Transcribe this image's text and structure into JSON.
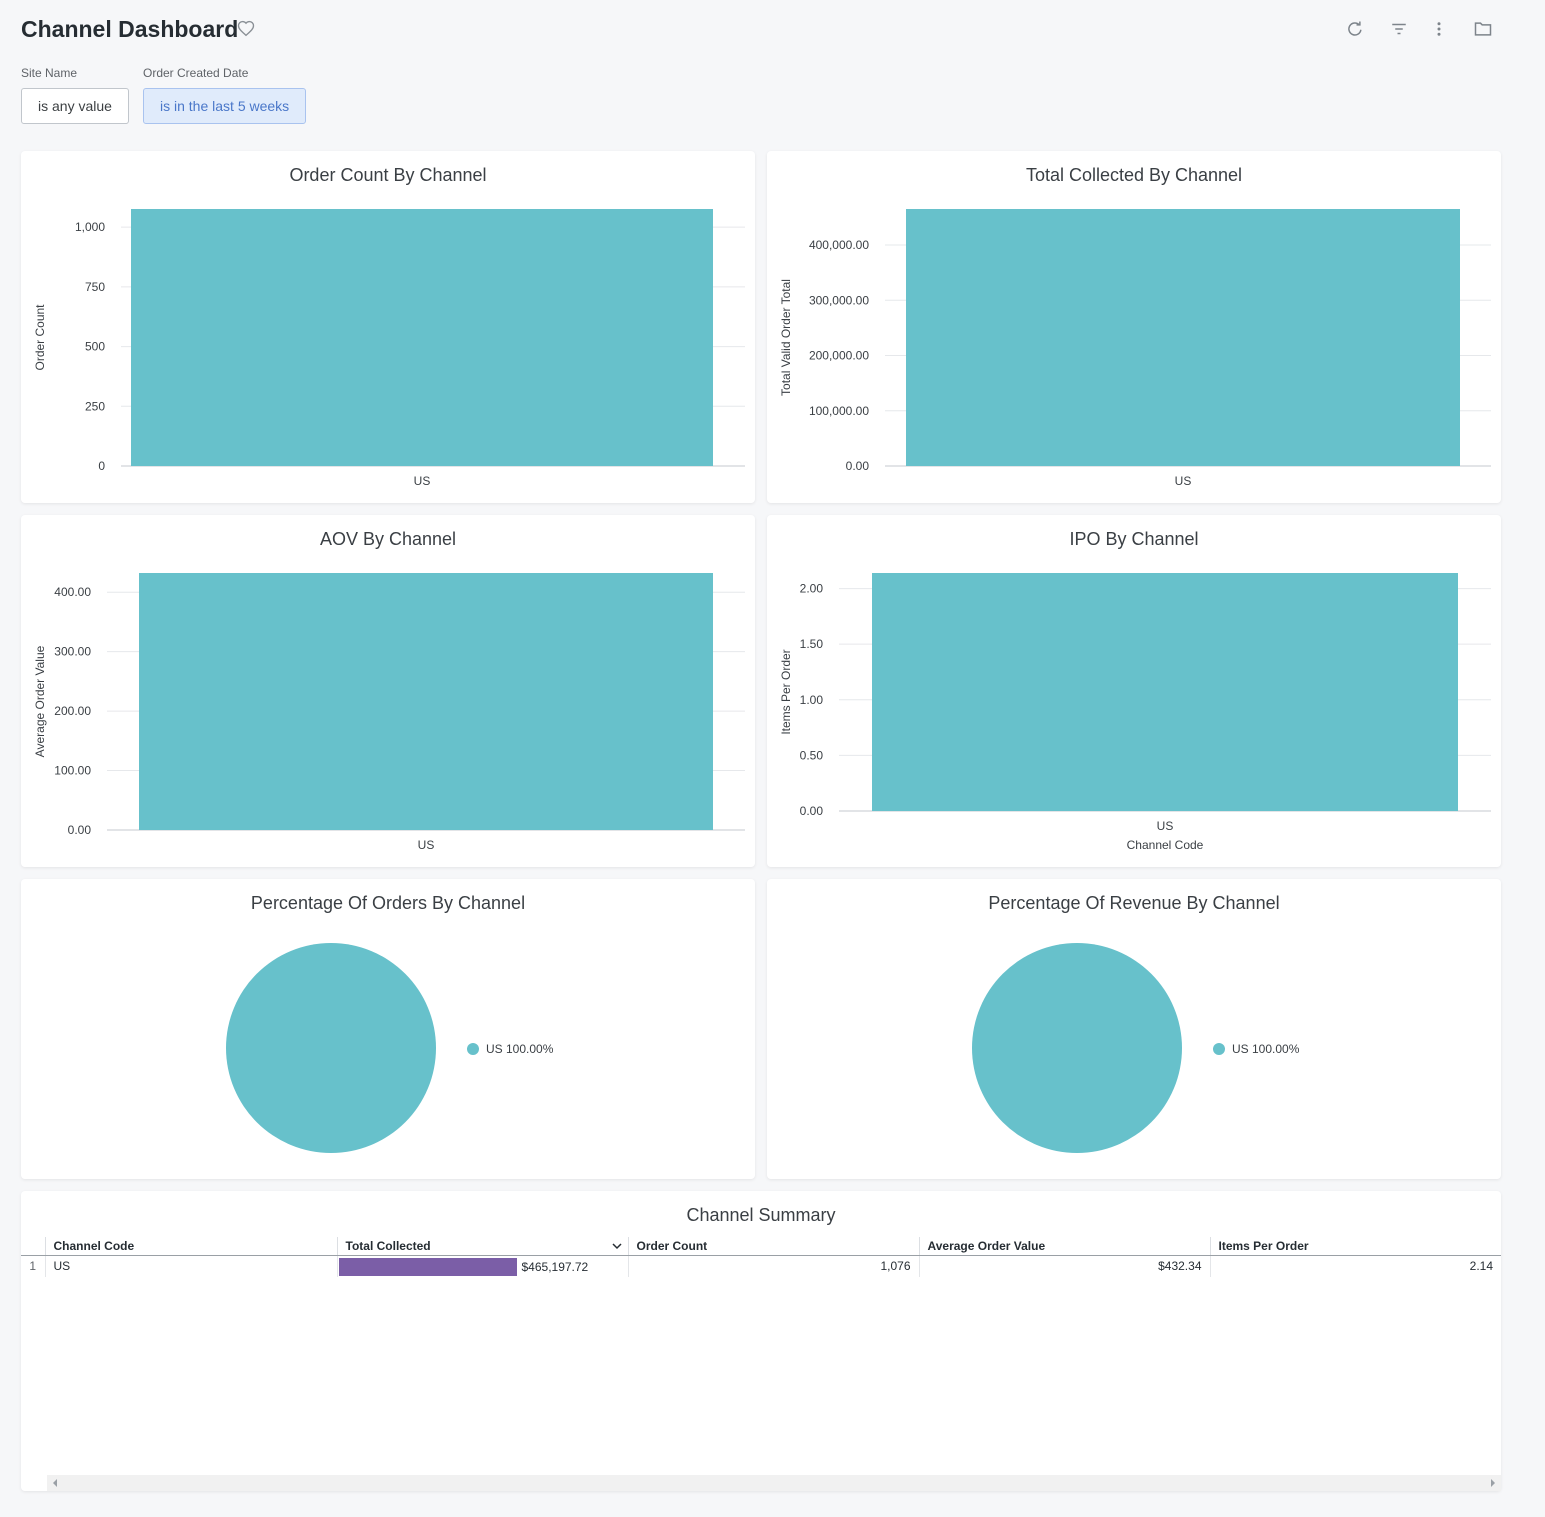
{
  "header": {
    "title": "Channel Dashboard",
    "icons": [
      "heart-icon",
      "refresh-icon",
      "filter-icon",
      "more-vert-icon",
      "folder-icon"
    ]
  },
  "filters": [
    {
      "label": "Site Name",
      "value": "is any value"
    },
    {
      "label": "Order Created Date",
      "value": "is in the last 5 weeks"
    }
  ],
  "colors": {
    "bar": "#67c1cb",
    "table_bar": "#7b5ea7",
    "grid": "#e6e8eb"
  },
  "chart_data": [
    {
      "type": "bar",
      "title": "Order Count By Channel",
      "categories": [
        "US"
      ],
      "values": [
        1076
      ],
      "xlabel": "",
      "ylabel": "Order Count",
      "ylim": [
        0,
        1076
      ],
      "ticks": [
        0,
        250,
        500,
        750,
        1000
      ],
      "tick_labels": [
        "0",
        "250",
        "500",
        "750",
        "1,000"
      ],
      "grid": true
    },
    {
      "type": "bar",
      "title": "Total Collected By Channel",
      "categories": [
        "US"
      ],
      "values": [
        465197.72
      ],
      "xlabel": "",
      "ylabel": "Total Valid Order Total",
      "ylim": [
        0,
        465197.72
      ],
      "ticks": [
        0,
        100000,
        200000,
        300000,
        400000
      ],
      "tick_labels": [
        "0.00",
        "100,000.00",
        "200,000.00",
        "300,000.00",
        "400,000.00"
      ],
      "grid": true
    },
    {
      "type": "bar",
      "title": "AOV By Channel",
      "categories": [
        "US"
      ],
      "values": [
        432.34
      ],
      "xlabel": "",
      "ylabel": "Average Order Value",
      "ylim": [
        0,
        432.34
      ],
      "ticks": [
        0,
        100,
        200,
        300,
        400
      ],
      "tick_labels": [
        "0.00",
        "100.00",
        "200.00",
        "300.00",
        "400.00"
      ],
      "grid": true
    },
    {
      "type": "bar",
      "title": "IPO By Channel",
      "categories": [
        "US"
      ],
      "values": [
        2.14
      ],
      "xlabel": "Channel Code",
      "ylabel": "Items Per Order",
      "ylim": [
        0,
        2.14
      ],
      "ticks": [
        0,
        0.5,
        1,
        1.5,
        2
      ],
      "tick_labels": [
        "0.00",
        "0.50",
        "1.00",
        "1.50",
        "2.00"
      ],
      "grid": true
    },
    {
      "type": "pie",
      "title": "Percentage Of Orders By Channel",
      "categories": [
        "US"
      ],
      "values": [
        100
      ],
      "legend": [
        "US 100.00%"
      ],
      "legend_position": "right"
    },
    {
      "type": "pie",
      "title": "Percentage Of Revenue By Channel",
      "categories": [
        "US"
      ],
      "values": [
        100
      ],
      "legend": [
        "US 100.00%"
      ],
      "legend_position": "right"
    },
    {
      "type": "table",
      "title": "Channel Summary",
      "columns": [
        "Channel Code",
        "Total Collected",
        "Order Count",
        "Average Order Value",
        "Items Per Order"
      ],
      "rows": [
        {
          "index": "1",
          "channel_code": "US",
          "total_collected": "$465,197.72",
          "order_count": "1,076",
          "aov": "$432.34",
          "ipo": "2.14",
          "total_collected_fill": 1.0
        }
      ]
    }
  ]
}
